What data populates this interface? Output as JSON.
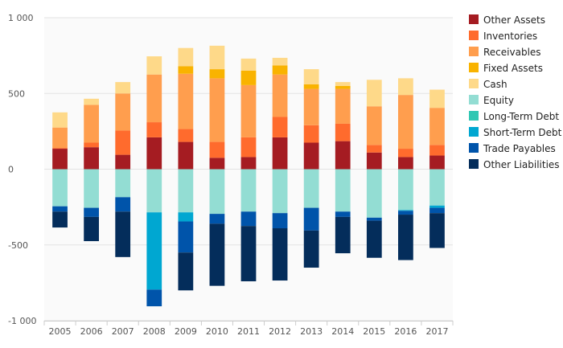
{
  "chart_data": {
    "type": "bar",
    "stacked": true,
    "categories": [
      "2005",
      "2006",
      "2007",
      "2008",
      "2009",
      "2010",
      "2011",
      "2012",
      "2013",
      "2014",
      "2015",
      "2016",
      "2017"
    ],
    "ylim": [
      -1000,
      1000
    ],
    "yticks": [
      1000,
      500,
      0,
      -500,
      -1000
    ],
    "ytick_labels": [
      "1 000",
      "500",
      "0",
      "-500",
      "-1 000"
    ],
    "legend_position": "right",
    "series": [
      {
        "name": "Other Assets",
        "color": "#a51c22",
        "values": [
          135,
          145,
          95,
          210,
          180,
          75,
          80,
          210,
          175,
          185,
          110,
          80,
          90
        ]
      },
      {
        "name": "Inventories",
        "color": "#ff6b2d",
        "values": [
          5,
          30,
          160,
          100,
          85,
          105,
          130,
          135,
          115,
          115,
          50,
          55,
          70
        ]
      },
      {
        "name": "Receivables",
        "color": "#ff9e4e",
        "values": [
          135,
          250,
          245,
          315,
          365,
          420,
          345,
          280,
          240,
          230,
          255,
          355,
          245
        ]
      },
      {
        "name": "Fixed Assets",
        "color": "#f9b300",
        "values": [
          0,
          0,
          0,
          0,
          50,
          60,
          95,
          60,
          30,
          20,
          0,
          0,
          0
        ]
      },
      {
        "name": "Cash",
        "color": "#fed989",
        "values": [
          100,
          40,
          75,
          120,
          120,
          155,
          80,
          50,
          100,
          25,
          175,
          110,
          120
        ]
      },
      {
        "name": "Equity",
        "color": "#93ddd3",
        "values": [
          -245,
          -255,
          -185,
          -285,
          -285,
          -295,
          -280,
          -290,
          -255,
          -280,
          -320,
          -270,
          -240
        ]
      },
      {
        "name": "Long-Term Debt",
        "color": "#30c7b3",
        "values": [
          0,
          0,
          0,
          0,
          0,
          0,
          0,
          0,
          0,
          0,
          0,
          0,
          0
        ]
      },
      {
        "name": "Short-Term Debt",
        "color": "#00a7d1",
        "values": [
          0,
          0,
          0,
          -510,
          -60,
          0,
          0,
          0,
          0,
          0,
          0,
          -5,
          -15
        ]
      },
      {
        "name": "Trade Payables",
        "color": "#0054aa",
        "values": [
          -35,
          -60,
          -95,
          -110,
          -205,
          -65,
          -95,
          -100,
          -150,
          -35,
          -20,
          -25,
          -35
        ]
      },
      {
        "name": "Other Liabilities",
        "color": "#042d5b",
        "values": [
          -105,
          -160,
          -300,
          0,
          -250,
          -410,
          -365,
          -345,
          -245,
          -240,
          -245,
          -300,
          -230
        ]
      }
    ]
  }
}
